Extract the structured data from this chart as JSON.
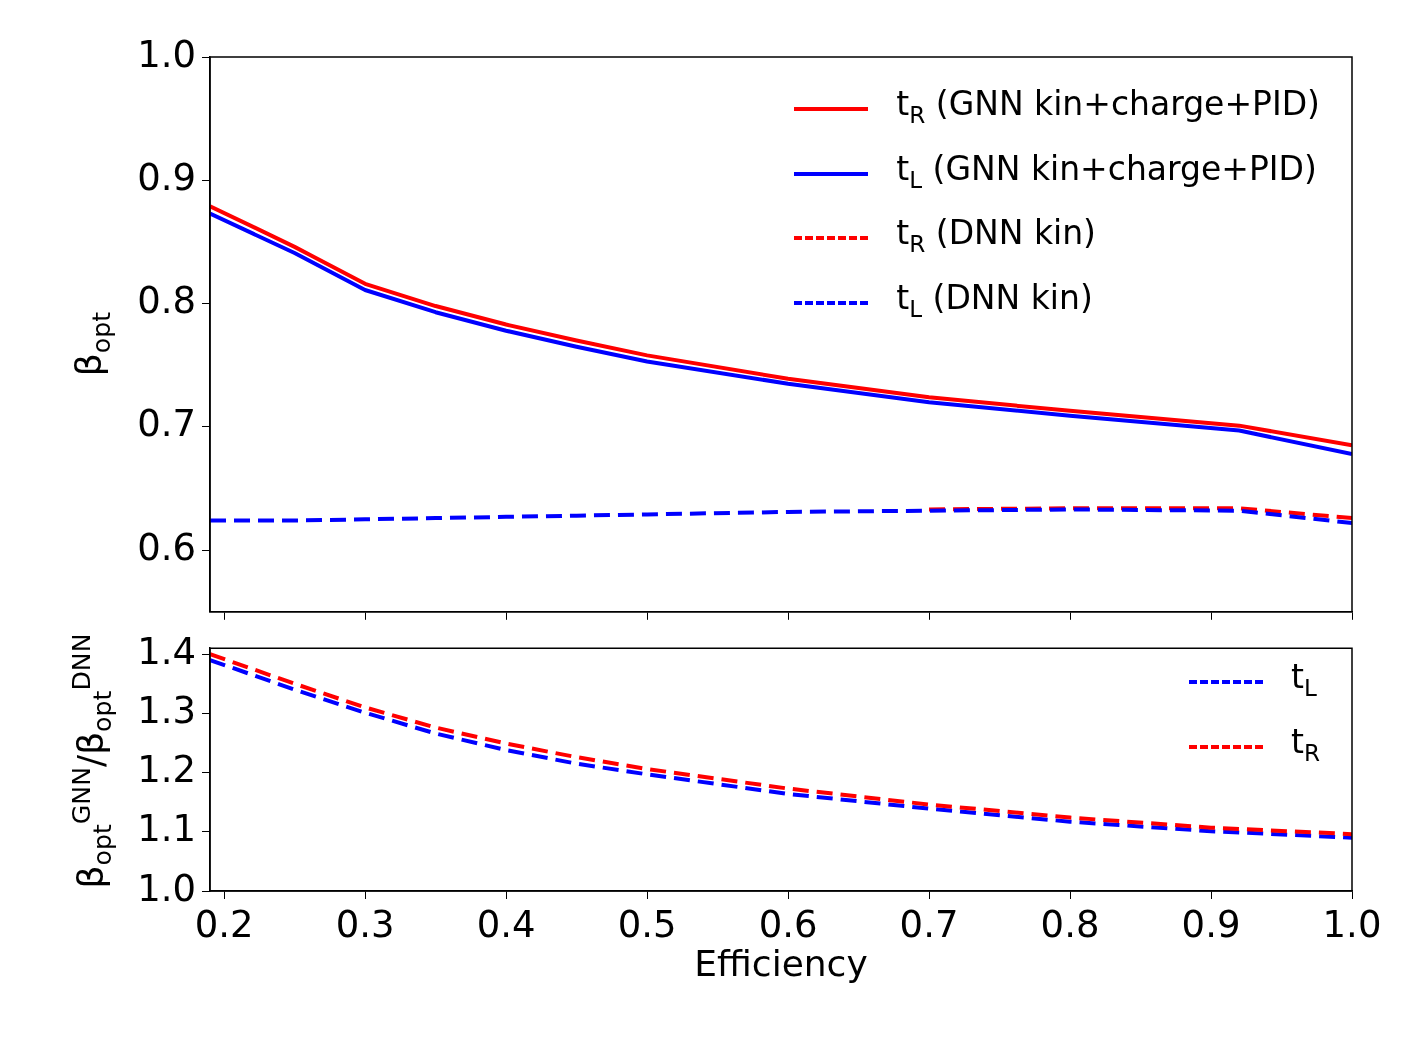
{
  "chart_data": [
    {
      "type": "line",
      "ylabel": "β$_{opt}$",
      "x": [
        0.19,
        0.25,
        0.3,
        0.35,
        0.4,
        0.45,
        0.5,
        0.6,
        0.7,
        0.8,
        0.92,
        1.0
      ],
      "xlim": [
        0.19,
        1.0
      ],
      "xticks": [
        0.2,
        0.3,
        0.4,
        0.5,
        0.6,
        0.7,
        0.8,
        0.9,
        1.0
      ],
      "ylim": [
        0.55,
        1.0
      ],
      "yticks": [
        0.6,
        0.7,
        0.8,
        0.9,
        {
          "value": 1,
          "label": "1.0"
        }
      ],
      "tick_labels": "y",
      "grid": false,
      "legend": "top right",
      "marker": "none",
      "series": [
        {
          "name": "t$_{R}$ (GNN kin+charge+PID)",
          "color": "#ff0000",
          "line_style": "solid",
          "values": [
            0.879,
            0.846,
            0.816,
            0.798,
            0.783,
            0.77,
            0.758,
            0.739,
            0.724,
            0.713,
            0.701,
            0.685
          ]
        },
        {
          "name": "t$_{L}$ (GNN kin+charge+PID)",
          "color": "#0000ff",
          "line_style": "solid",
          "values": [
            0.873,
            0.841,
            0.811,
            0.793,
            0.778,
            0.765,
            0.753,
            0.735,
            0.72,
            0.709,
            0.697,
            0.678
          ]
        },
        {
          "name": "t$_{R}$ (DNN kin)",
          "color": "#ff0000",
          "line_style": "dashed",
          "values": [
            null,
            null,
            null,
            null,
            null,
            null,
            null,
            null,
            0.633,
            0.634,
            0.634,
            0.626
          ]
        },
        {
          "name": "t$_{L}$ (DNN kin)",
          "color": "#0000ff",
          "line_style": "dashed",
          "values": [
            0.624,
            0.624,
            0.625,
            0.626,
            0.627,
            0.628,
            0.629,
            0.631,
            0.632,
            0.633,
            0.632,
            0.622
          ]
        }
      ]
    },
    {
      "type": "line",
      "xlabel": "Efficiency",
      "ylabel": "β$_{opt}$$^{GNN}$/β$_{opt}$$^{DNN}$",
      "x": [
        0.19,
        0.25,
        0.3,
        0.35,
        0.4,
        0.45,
        0.5,
        0.6,
        0.7,
        0.8,
        0.9,
        1.0
      ],
      "xlim": [
        0.19,
        1.0
      ],
      "xticks": [
        0.2,
        0.3,
        0.4,
        0.5,
        0.6,
        0.7,
        0.8,
        0.9,
        {
          "value": 1,
          "label": "1.0"
        }
      ],
      "ylim": [
        1.0,
        1.41
      ],
      "yticks": [
        {
          "value": 1,
          "label": "1.0"
        },
        1.1,
        1.2,
        1.3,
        1.4
      ],
      "grid": false,
      "legend": "top right",
      "marker": "none",
      "series": [
        {
          "name": "t$_{L}$",
          "color": "#0000ff",
          "line_style": "dashed",
          "values": [
            1.39,
            1.34,
            1.301,
            1.266,
            1.238,
            1.215,
            1.197,
            1.164,
            1.139,
            1.117,
            1.101,
            1.09
          ]
        },
        {
          "name": "t$_{R}$",
          "color": "#ff0000",
          "line_style": "dashed",
          "values": [
            1.4,
            1.35,
            1.31,
            1.276,
            1.249,
            1.226,
            1.206,
            1.173,
            1.146,
            1.124,
            1.107,
            1.096
          ]
        }
      ]
    }
  ]
}
